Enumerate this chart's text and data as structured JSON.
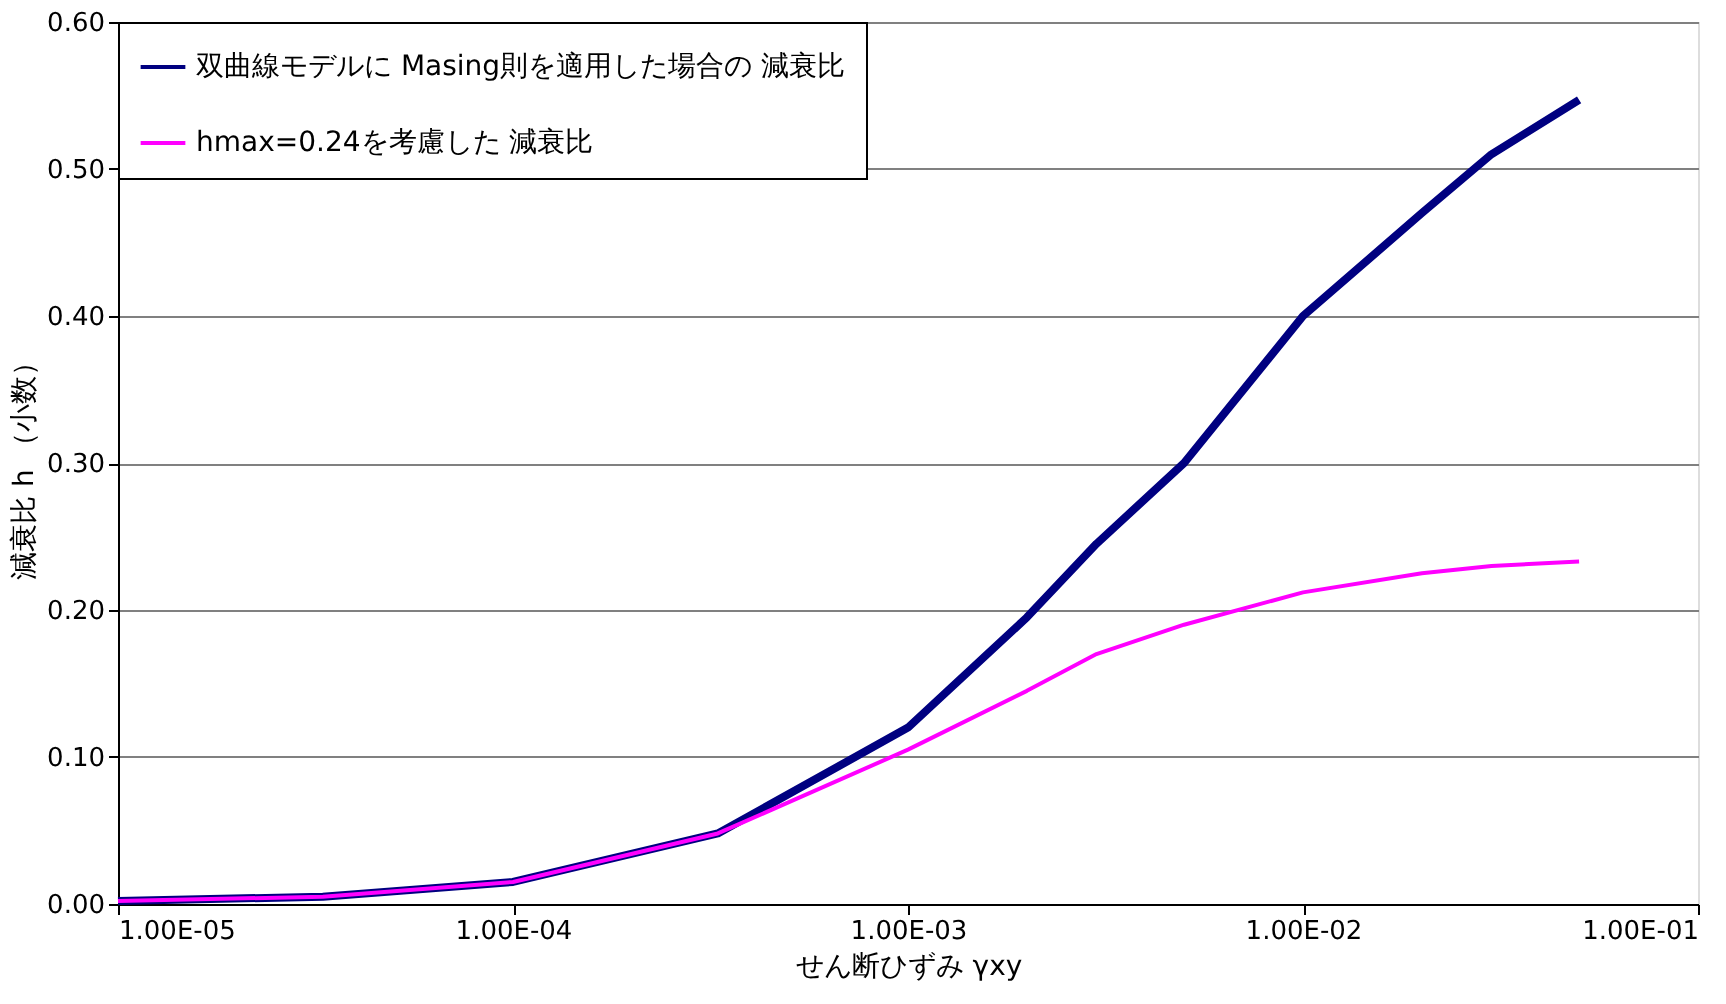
{
  "chart_data": {
    "type": "line",
    "xlabel": "せん断ひずみ γxy",
    "ylabel": "減衰比 h （小数）",
    "log": "x",
    "grid": "y",
    "legend": "top left",
    "marker": "none",
    "line_style": "solid",
    "xlim": [
      1e-05,
      0.1
    ],
    "xticks": [
      {
        "value": 1e-05,
        "label": "1.00E-05"
      },
      {
        "value": 0.0001,
        "label": "1.00E-04"
      },
      {
        "value": 0.001,
        "label": "1.00E-03"
      },
      {
        "value": 0.01,
        "label": "1.00E-02"
      },
      {
        "value": 0.1,
        "label": "1.00E-01"
      }
    ],
    "ylim": [
      0,
      0.6
    ],
    "yticks": [
      {
        "value": 0,
        "label": "0.00"
      },
      {
        "value": 0.1,
        "label": "0.10"
      },
      {
        "value": 0.2,
        "label": "0.20"
      },
      {
        "value": 0.3,
        "label": "0.30"
      },
      {
        "value": 0.4,
        "label": "0.40"
      },
      {
        "value": 0.5,
        "label": "0.50"
      },
      {
        "value": 0.6,
        "label": "0.60"
      }
    ],
    "x": [
      1e-05,
      3.3e-05,
      0.0001,
      0.00033,
      0.001,
      0.002,
      0.003,
      0.005,
      0.01,
      0.02,
      0.03,
      0.05
    ],
    "series": [
      {
        "name": "双曲線モデルに Masing則を適用した場合の 減衰比",
        "color": "#000080",
        "values": [
          0.002,
          0.005,
          0.015,
          0.048,
          0.12,
          0.195,
          0.245,
          0.3,
          0.4,
          0.47,
          0.51,
          0.547
        ]
      },
      {
        "name": "hmax=0.24を考慮した 減衰比",
        "color": "#ff00ff",
        "values": [
          0.002,
          0.005,
          0.015,
          0.048,
          0.105,
          0.145,
          0.17,
          0.19,
          0.212,
          0.225,
          0.23,
          0.233
        ]
      }
    ]
  }
}
